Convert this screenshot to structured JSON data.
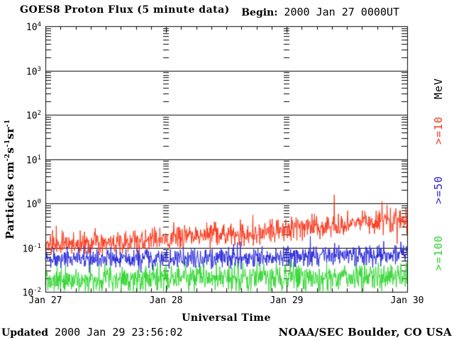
{
  "header": {
    "title": "GOES8 Proton Flux (5 minute data)",
    "begin_label": "Begin:",
    "begin_value": " 2000 Jan 27 0000UT"
  },
  "axes": {
    "x_title": "Universal Time",
    "x_ticks": [
      "Jan 27",
      "Jan 28",
      "Jan 29",
      "Jan 30"
    ],
    "y_tick_base": "10",
    "y_tick_exponents": [
      "4",
      "3",
      "2",
      "1",
      "0",
      "-1",
      "-2"
    ],
    "y_title_parts": {
      "base1": "Particles cm",
      "sup1": "-2",
      "base2": "s",
      "sup2": "-1",
      "base3": "sr",
      "sup3": "-1"
    }
  },
  "right_labels": {
    "unit": "MeV",
    "unit_color": "#000000"
  },
  "footer": {
    "updated_label": "Updated",
    "updated_value": " 2000 Jan 29 23:56:02",
    "credit": "NOAA/SEC Boulder, CO USA"
  },
  "chart_data": {
    "type": "line",
    "title": "GOES8 Proton Flux (5 minute data)",
    "begin": "2000 Jan 27 0000UT",
    "updated": "2000 Jan 29 23:56:02",
    "source": "NOAA/SEC Boulder, CO USA",
    "xlabel": "Universal Time",
    "ylabel": "Particles cm-2 s-1 sr-1",
    "y_scale": "log10",
    "ylim": [
      0.01,
      10000
    ],
    "x_days": [
      "Jan 27",
      "Jan 28",
      "Jan 29",
      "Jan 30"
    ],
    "x_span_hours": 72,
    "cadence_minutes": 5,
    "samples_per_series": 864,
    "minor_time_ticks_per_day": 8,
    "grid": "solid horizontal decade lines; log minor-tick columns at interior day boundaries",
    "unit_label": "MeV",
    "series": [
      {
        "label": ">=10",
        "threshold_mev": 10,
        "color": "#f83518",
        "description": "noisy, rises from ~0.12 to ~0.45 over 3 days, spikes to ~1.0",
        "env_log10_flux_every_6h": [
          -0.92,
          -0.9,
          -0.88,
          -0.85,
          -0.8,
          -0.75,
          -0.7,
          -0.66,
          -0.58,
          -0.52,
          -0.47,
          -0.42,
          -0.38
        ],
        "noise_sigma_log10": 0.13,
        "spike_prob": 0.02,
        "spike_max_log10": 0.5
      },
      {
        "label": ">=50",
        "threshold_mev": 50,
        "color": "#2525d8",
        "description": "noisy, nearly flat ~0.05-0.07, spikes to ~0.2",
        "env_log10_flux_every_6h": [
          -1.27,
          -1.26,
          -1.25,
          -1.24,
          -1.24,
          -1.23,
          -1.22,
          -1.21,
          -1.2,
          -1.19,
          -1.18,
          -1.17,
          -1.16
        ],
        "noise_sigma_log10": 0.11,
        "spike_prob": 0.015,
        "spike_max_log10": 0.35
      },
      {
        "label": ">=100",
        "threshold_mev": 100,
        "color": "#2fd62f",
        "description": "noisy ~0.02, frequently clipped at lower limit 0.01",
        "env_log10_flux_every_6h": [
          -1.72,
          -1.71,
          -1.72,
          -1.7,
          -1.7,
          -1.69,
          -1.7,
          -1.68,
          -1.68,
          -1.67,
          -1.68,
          -1.66,
          -1.66
        ],
        "noise_sigma_log10": 0.16,
        "spike_prob": 0.012,
        "spike_max_log10": 0.3
      }
    ]
  }
}
